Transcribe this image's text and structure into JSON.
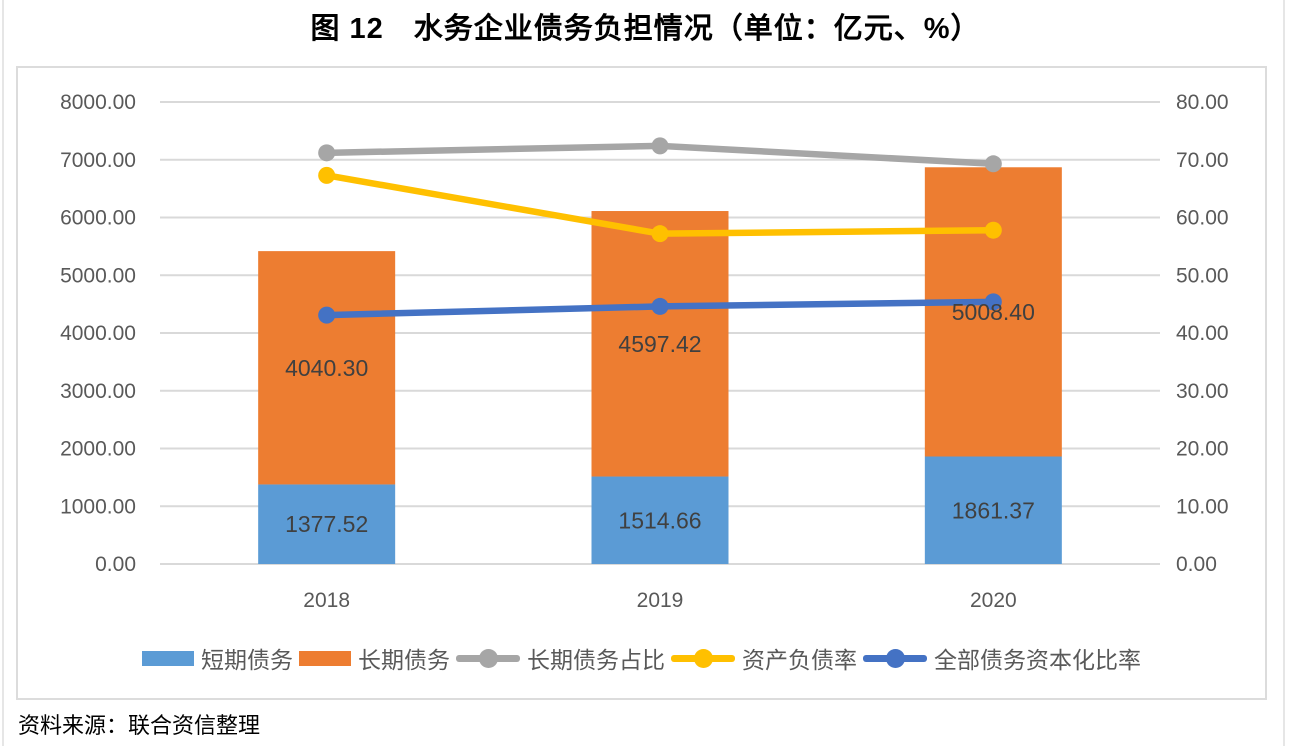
{
  "page": {
    "title": "图 12　水务企业债务负担情况（单位：亿元、%）",
    "source": "资料来源：联合资信整理"
  },
  "chart_data": {
    "type": "bar",
    "subtype": "stacked-bar-with-lines-dual-axis",
    "title": "图 12 水务企业债务负担情况（单位：亿元、%）",
    "categories": [
      "2018",
      "2019",
      "2020"
    ],
    "bar_series": [
      {
        "name": "短期债务",
        "axis": "left",
        "color": "#5B9BD5",
        "values": [
          1377.52,
          1514.66,
          1861.37
        ]
      },
      {
        "name": "长期债务",
        "axis": "left",
        "color": "#ED7D31",
        "values": [
          4040.3,
          4597.42,
          5008.4
        ]
      }
    ],
    "line_series": [
      {
        "name": "长期债务占比",
        "axis": "right",
        "color": "#A6A6A6",
        "values": [
          71.2,
          72.4,
          69.3
        ]
      },
      {
        "name": "资产负债率",
        "axis": "right",
        "color": "#FFC000",
        "values": [
          67.3,
          57.2,
          57.8
        ]
      },
      {
        "name": "全部债务资本化比率",
        "axis": "right",
        "color": "#4472C4",
        "values": [
          43.1,
          44.6,
          45.4
        ]
      }
    ],
    "left_axis": {
      "min": 0,
      "max": 8000,
      "step": 1000,
      "decimals": 2
    },
    "right_axis": {
      "min": 0,
      "max": 80,
      "step": 10,
      "decimals": 2
    },
    "grid": true,
    "gridline_color": "#D9D9D9",
    "legend_position": "bottom",
    "bar_labels_visible": true,
    "bar_label_color": "#404040",
    "tick_label_color": "#595959"
  }
}
